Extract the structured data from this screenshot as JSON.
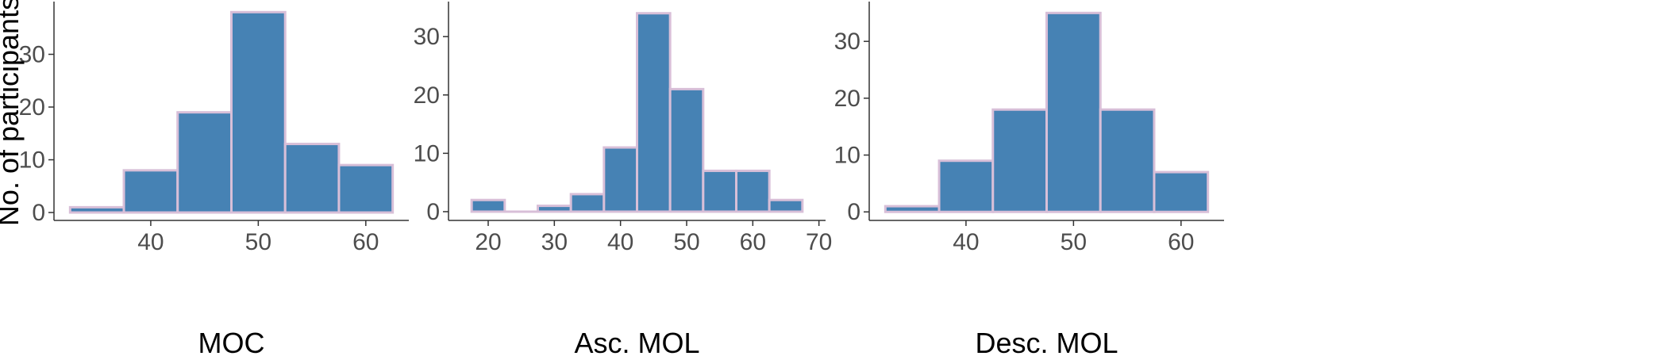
{
  "chart_data": [
    {
      "type": "bar",
      "subtype": "histogram",
      "xlabel": "MOC",
      "ylabel": "No. of participants",
      "bin_edges": [
        32.5,
        37.5,
        42.5,
        47.5,
        52.5,
        57.5,
        62.5
      ],
      "values": [
        1,
        8,
        19,
        38,
        13,
        9
      ],
      "xlim": [
        31,
        64
      ],
      "ylim": [
        -1.5,
        40
      ],
      "xticks": [
        40,
        50,
        60
      ],
      "yticks": [
        0,
        10,
        20,
        30
      ],
      "bar_color": "#4682b4",
      "bar_border_color": "#d8bfd8"
    },
    {
      "type": "bar",
      "subtype": "histogram",
      "xlabel": "Asc. MOL",
      "ylabel": "",
      "bin_edges": [
        17.5,
        22.5,
        27.5,
        32.5,
        37.5,
        42.5,
        47.5,
        52.5,
        57.5,
        62.5,
        67.5
      ],
      "values": [
        2,
        0,
        1,
        3,
        11,
        34,
        21,
        7,
        7,
        2
      ],
      "xlim": [
        14,
        71
      ],
      "ylim": [
        -1.5,
        36
      ],
      "xticks": [
        20,
        30,
        40,
        50,
        60,
        70
      ],
      "yticks": [
        0,
        10,
        20,
        30
      ],
      "bar_color": "#4682b4",
      "bar_border_color": "#d8bfd8"
    },
    {
      "type": "bar",
      "subtype": "histogram",
      "xlabel": "Desc. MOL",
      "ylabel": "",
      "bin_edges": [
        32.5,
        37.5,
        42.5,
        47.5,
        52.5,
        57.5,
        62.5
      ],
      "values": [
        1,
        9,
        18,
        35,
        18,
        7
      ],
      "xlim": [
        31,
        64
      ],
      "ylim": [
        -1.5,
        37
      ],
      "xticks": [
        40,
        50,
        60
      ],
      "yticks": [
        0,
        10,
        20,
        30
      ],
      "bar_color": "#4682b4",
      "bar_border_color": "#d8bfd8"
    }
  ]
}
